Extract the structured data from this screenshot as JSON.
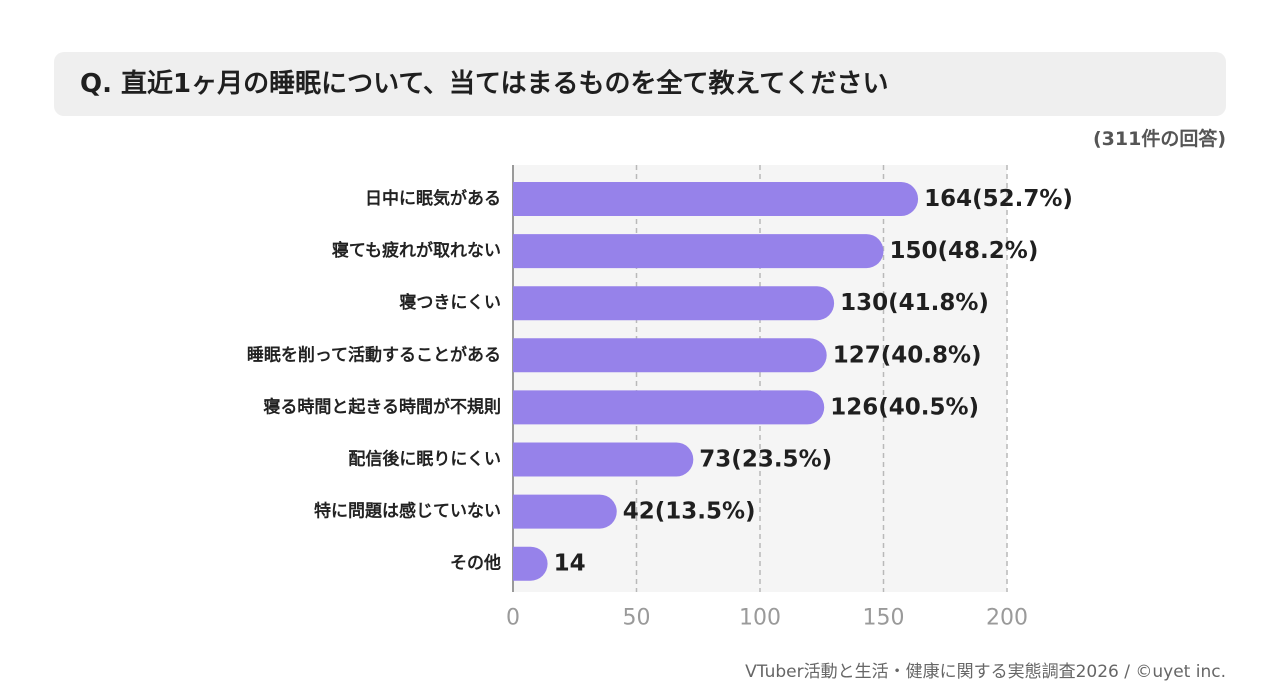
{
  "header": {
    "question": "Q. 直近1ヶ月の睡眠について、当てはまるものを全て教えてください",
    "response_count": "(311件の回答)"
  },
  "footer": {
    "source": "VTuber活動と生活・健康に関する実態調査2026 / ©uyet inc."
  },
  "chart_data": {
    "type": "bar",
    "orientation": "horizontal",
    "categories": [
      "日中に眠気がある",
      "寝ても疲れが取れない",
      "寝つきにくい",
      "睡眠を削って活動することがある",
      "寝る時間と起きる時間が不規則",
      "配信後に眠りにくい",
      "特に問題は感じていない",
      "その他"
    ],
    "values": [
      164,
      150,
      130,
      127,
      126,
      73,
      42,
      14
    ],
    "data_labels": [
      "164(52.7%)",
      "150(48.2%)",
      "130(41.8%)",
      "127(40.8%)",
      "126(40.5%)",
      "73(23.5%)",
      "42(13.5%)",
      "14"
    ],
    "xlim": [
      0,
      200
    ],
    "xticks": [
      0,
      50,
      100,
      150,
      200
    ],
    "grid": "vertical-dashed",
    "bar_color": "#9682ea",
    "plot_background": "#f5f5f5"
  }
}
